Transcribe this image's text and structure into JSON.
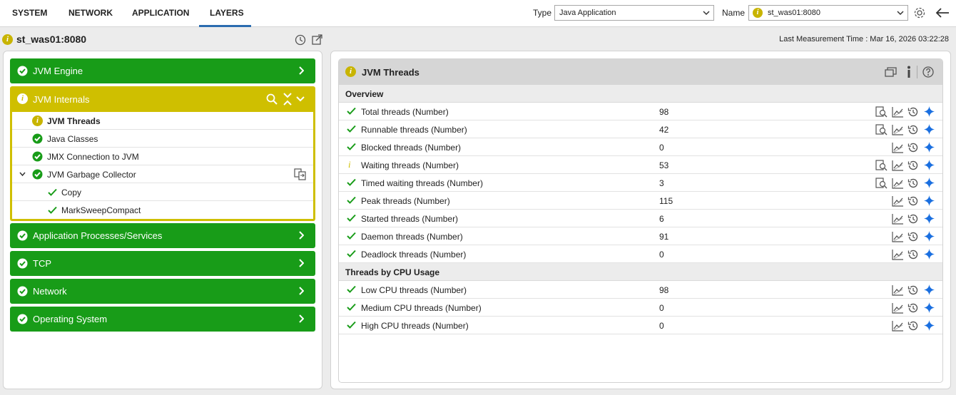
{
  "tabs": [
    "SYSTEM",
    "NETWORK",
    "APPLICATION",
    "LAYERS"
  ],
  "active_tab": "LAYERS",
  "filters": {
    "type_label": "Type",
    "type_value": "Java Application",
    "name_label": "Name",
    "name_value": "st_was01:8080"
  },
  "host": {
    "title": "st_was01:8080",
    "last_measurement": "Last Measurement Time : Mar 16, 2026 03:22:28"
  },
  "layers": {
    "jvm_engine": "JVM Engine",
    "jvm_internals": "JVM Internals",
    "tests": {
      "jvm_threads": "JVM Threads",
      "java_classes": "Java Classes",
      "jmx_connection": "JMX Connection to JVM",
      "gc": "JVM Garbage Collector",
      "gc_copy": "Copy",
      "gc_msc": "MarkSweepCompact"
    },
    "app_processes": "Application Processes/Services",
    "tcp": "TCP",
    "network": "Network",
    "os": "Operating System"
  },
  "panel": {
    "title": "JVM Threads",
    "sections": [
      "Overview",
      "Threads by CPU Usage"
    ],
    "rows": [
      {
        "name": "Total threads (Number)",
        "value": "98",
        "status": "ok"
      },
      {
        "name": "Runnable threads (Number)",
        "value": "42",
        "status": "ok"
      },
      {
        "name": "Blocked threads (Number)",
        "value": "0",
        "status": "ok"
      },
      {
        "name": "Waiting threads (Number)",
        "value": "53",
        "status": "info"
      },
      {
        "name": "Timed waiting threads (Number)",
        "value": "3",
        "status": "ok"
      },
      {
        "name": "Peak threads (Number)",
        "value": "115",
        "status": "ok"
      },
      {
        "name": "Started threads (Number)",
        "value": "6",
        "status": "ok"
      },
      {
        "name": "Daemon threads (Number)",
        "value": "91",
        "status": "ok"
      },
      {
        "name": "Deadlock threads (Number)",
        "value": "0",
        "status": "ok"
      },
      {
        "name": "Low CPU threads (Number)",
        "value": "98",
        "status": "ok"
      },
      {
        "name": "Medium CPU threads (Number)",
        "value": "0",
        "status": "ok"
      },
      {
        "name": "High CPU threads (Number)",
        "value": "0",
        "status": "ok"
      }
    ]
  },
  "colors": {
    "green": "#189c18",
    "yellow": "#cfbf00",
    "blue_accent": "#2b6cb0",
    "star": "#1a6fe0"
  },
  "info_glyph": "i"
}
